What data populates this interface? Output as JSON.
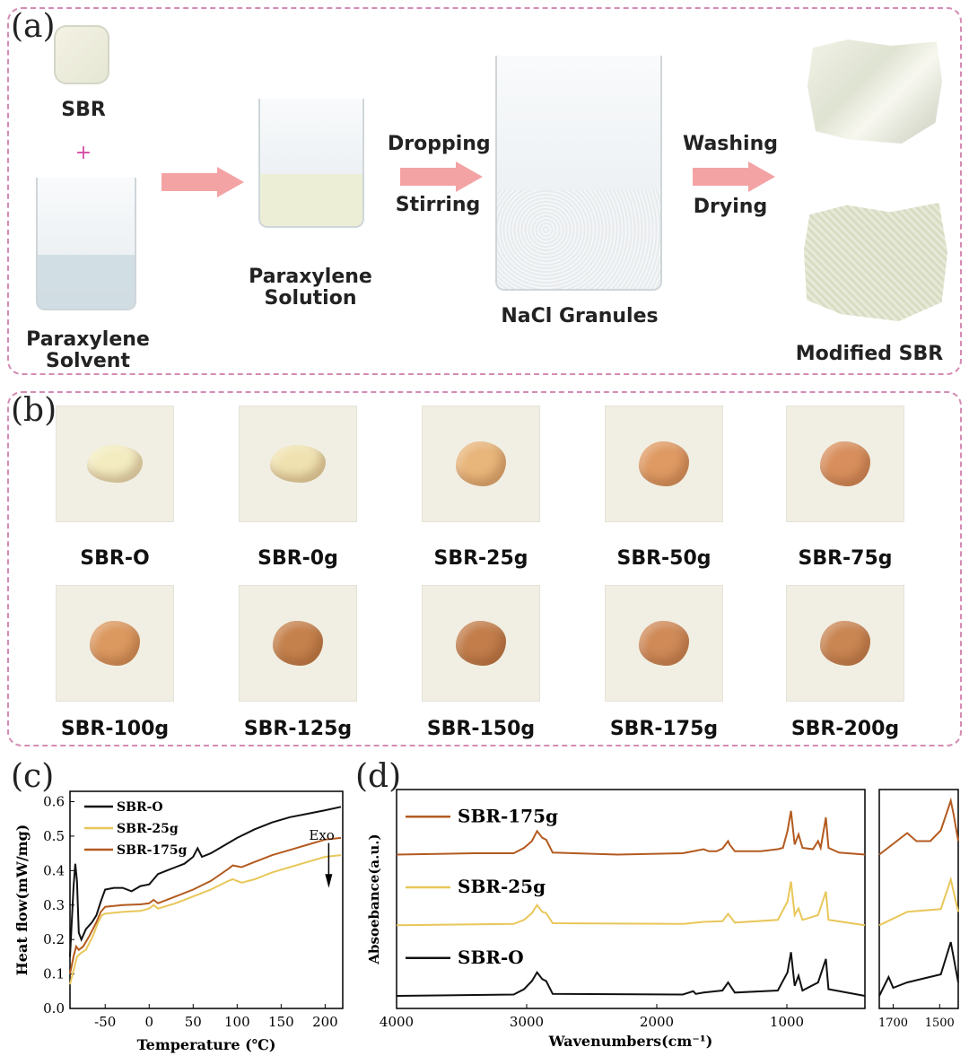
{
  "panel_a": {
    "letter": "(a)",
    "sbr": "SBR",
    "plus": "+",
    "solvent": [
      "Paraxylene",
      "Solvent"
    ],
    "solution": [
      "Paraxylene",
      "Solution"
    ],
    "step1": [
      "Dropping",
      "Stirring"
    ],
    "granules": "NaCl Granules",
    "step2": [
      "Washing",
      "Drying"
    ],
    "product": "Modified SBR",
    "arrow_color": "#f4a3a5",
    "frame_color": "#d58bb3"
  },
  "panel_b": {
    "letter": "(b)",
    "samples": [
      {
        "label": "SBR-O",
        "color": "#f3ecc0"
      },
      {
        "label": "SBR-0g",
        "color": "#f0e2b0"
      },
      {
        "label": "SBR-25g",
        "color": "#e8b57a"
      },
      {
        "label": "SBR-50g",
        "color": "#df9a63"
      },
      {
        "label": "SBR-75g",
        "color": "#d88f5d"
      },
      {
        "label": "SBR-100g",
        "color": "#db985f"
      },
      {
        "label": "SBR-125g",
        "color": "#c5814c"
      },
      {
        "label": "SBR-150g",
        "color": "#c27d4b"
      },
      {
        "label": "SBR-175g",
        "color": "#cf8a58"
      },
      {
        "label": "SBR-200g",
        "color": "#c98552"
      }
    ]
  },
  "panel_c": {
    "letter": "(c)",
    "chart_data": {
      "type": "line",
      "title": "",
      "xlabel": "Temperature (℃)",
      "ylabel": "Heat flow(mW/mg)",
      "xlim": [
        -90,
        220
      ],
      "ylim": [
        0.0,
        0.63
      ],
      "xticks": [
        -50,
        0,
        50,
        100,
        150,
        200
      ],
      "yticks": [
        0.0,
        0.1,
        0.2,
        0.3,
        0.4,
        0.5,
        0.6
      ],
      "annotation": "Exo",
      "legend_position": "top-left",
      "series": [
        {
          "name": "SBR-O",
          "color": "#111111",
          "points": [
            [
              -90,
              0.15
            ],
            [
              -86,
              0.35
            ],
            [
              -84,
              0.42
            ],
            [
              -82,
              0.37
            ],
            [
              -80,
              0.22
            ],
            [
              -77,
              0.2
            ],
            [
              -72,
              0.23
            ],
            [
              -65,
              0.25
            ],
            [
              -60,
              0.27
            ],
            [
              -55,
              0.31
            ],
            [
              -50,
              0.345
            ],
            [
              -40,
              0.35
            ],
            [
              -30,
              0.35
            ],
            [
              -20,
              0.34
            ],
            [
              -10,
              0.355
            ],
            [
              0,
              0.36
            ],
            [
              5,
              0.375
            ],
            [
              10,
              0.39
            ],
            [
              20,
              0.4
            ],
            [
              30,
              0.41
            ],
            [
              40,
              0.42
            ],
            [
              50,
              0.44
            ],
            [
              55,
              0.465
            ],
            [
              60,
              0.44
            ],
            [
              70,
              0.45
            ],
            [
              80,
              0.465
            ],
            [
              90,
              0.48
            ],
            [
              100,
              0.495
            ],
            [
              120,
              0.52
            ],
            [
              140,
              0.54
            ],
            [
              160,
              0.555
            ],
            [
              180,
              0.565
            ],
            [
              200,
              0.575
            ],
            [
              218,
              0.585
            ]
          ]
        },
        {
          "name": "SBR-25g",
          "color": "#e8c75a",
          "points": [
            [
              -90,
              0.07
            ],
            [
              -86,
              0.11
            ],
            [
              -82,
              0.15
            ],
            [
              -78,
              0.16
            ],
            [
              -72,
              0.17
            ],
            [
              -64,
              0.21
            ],
            [
              -58,
              0.25
            ],
            [
              -54,
              0.27
            ],
            [
              -50,
              0.275
            ],
            [
              -30,
              0.28
            ],
            [
              -10,
              0.283
            ],
            [
              0,
              0.29
            ],
            [
              5,
              0.3
            ],
            [
              10,
              0.29
            ],
            [
              30,
              0.305
            ],
            [
              50,
              0.325
            ],
            [
              70,
              0.345
            ],
            [
              90,
              0.37
            ],
            [
              95,
              0.375
            ],
            [
              105,
              0.365
            ],
            [
              120,
              0.375
            ],
            [
              140,
              0.395
            ],
            [
              160,
              0.41
            ],
            [
              180,
              0.425
            ],
            [
              200,
              0.44
            ],
            [
              218,
              0.445
            ]
          ]
        },
        {
          "name": "SBR-175g",
          "color": "#b35a1f",
          "points": [
            [
              -90,
              0.1
            ],
            [
              -86,
              0.15
            ],
            [
              -83,
              0.18
            ],
            [
              -80,
              0.17
            ],
            [
              -75,
              0.18
            ],
            [
              -68,
              0.21
            ],
            [
              -60,
              0.25
            ],
            [
              -55,
              0.28
            ],
            [
              -50,
              0.295
            ],
            [
              -30,
              0.3
            ],
            [
              -10,
              0.302
            ],
            [
              0,
              0.305
            ],
            [
              5,
              0.315
            ],
            [
              10,
              0.305
            ],
            [
              30,
              0.325
            ],
            [
              50,
              0.345
            ],
            [
              70,
              0.37
            ],
            [
              90,
              0.405
            ],
            [
              95,
              0.415
            ],
            [
              105,
              0.41
            ],
            [
              120,
              0.425
            ],
            [
              140,
              0.445
            ],
            [
              160,
              0.46
            ],
            [
              180,
              0.475
            ],
            [
              200,
              0.49
            ],
            [
              218,
              0.495
            ]
          ]
        }
      ]
    }
  },
  "panel_d": {
    "letter": "(d)",
    "chart_data": {
      "type": "line",
      "title": "",
      "xlabel": "Wavenumbers(cm⁻¹)",
      "ylabel": "Absoebance(a.u.)",
      "xlim": [
        4000,
        400
      ],
      "xticks": [
        4000,
        3000,
        2000,
        1000
      ],
      "inset_xlim": [
        1760,
        1420
      ],
      "inset_xticks": [
        1700,
        1500
      ],
      "y_units": "arbitrary, stacked",
      "series": [
        {
          "name": "SBR-175g",
          "color": "#b35a1f",
          "offset": 2.1,
          "points": [
            [
              4000,
              0.0
            ],
            [
              3400,
              0.02
            ],
            [
              3100,
              0.02
            ],
            [
              3020,
              0.1
            ],
            [
              2960,
              0.2
            ],
            [
              2920,
              0.35
            ],
            [
              2880,
              0.25
            ],
            [
              2850,
              0.22
            ],
            [
              2800,
              0.03
            ],
            [
              2300,
              0.0
            ],
            [
              1800,
              0.02
            ],
            [
              1640,
              0.08
            ],
            [
              1600,
              0.05
            ],
            [
              1540,
              0.05
            ],
            [
              1495,
              0.09
            ],
            [
              1452,
              0.2
            ],
            [
              1440,
              0.15
            ],
            [
              1400,
              0.05
            ],
            [
              1200,
              0.05
            ],
            [
              1070,
              0.08
            ],
            [
              1030,
              0.1
            ],
            [
              995,
              0.35
            ],
            [
              968,
              0.65
            ],
            [
              940,
              0.15
            ],
            [
              910,
              0.3
            ],
            [
              880,
              0.1
            ],
            [
              800,
              0.08
            ],
            [
              760,
              0.2
            ],
            [
              740,
              0.1
            ],
            [
              700,
              0.55
            ],
            [
              680,
              0.1
            ],
            [
              600,
              0.03
            ],
            [
              400,
              0.0
            ]
          ]
        },
        {
          "name": "SBR-25g",
          "color": "#e8c75a",
          "offset": 1.05,
          "points": [
            [
              4000,
              0.0
            ],
            [
              3100,
              0.02
            ],
            [
              3020,
              0.08
            ],
            [
              2960,
              0.18
            ],
            [
              2920,
              0.3
            ],
            [
              2880,
              0.2
            ],
            [
              2850,
              0.18
            ],
            [
              2800,
              0.03
            ],
            [
              1800,
              0.02
            ],
            [
              1640,
              0.05
            ],
            [
              1495,
              0.06
            ],
            [
              1452,
              0.17
            ],
            [
              1400,
              0.04
            ],
            [
              1070,
              0.08
            ],
            [
              995,
              0.35
            ],
            [
              968,
              0.65
            ],
            [
              940,
              0.15
            ],
            [
              910,
              0.25
            ],
            [
              880,
              0.08
            ],
            [
              760,
              0.15
            ],
            [
              700,
              0.5
            ],
            [
              680,
              0.08
            ],
            [
              400,
              0.0
            ]
          ]
        },
        {
          "name": "SBR-O",
          "color": "#111111",
          "offset": 0.0,
          "points": [
            [
              4000,
              0.0
            ],
            [
              3100,
              0.02
            ],
            [
              3020,
              0.1
            ],
            [
              2960,
              0.22
            ],
            [
              2920,
              0.35
            ],
            [
              2880,
              0.25
            ],
            [
              2850,
              0.22
            ],
            [
              2800,
              0.03
            ],
            [
              1800,
              0.02
            ],
            [
              1720,
              0.07
            ],
            [
              1700,
              0.03
            ],
            [
              1640,
              0.05
            ],
            [
              1495,
              0.08
            ],
            [
              1452,
              0.2
            ],
            [
              1400,
              0.05
            ],
            [
              1070,
              0.08
            ],
            [
              995,
              0.35
            ],
            [
              968,
              0.65
            ],
            [
              940,
              0.15
            ],
            [
              910,
              0.3
            ],
            [
              880,
              0.08
            ],
            [
              760,
              0.2
            ],
            [
              700,
              0.55
            ],
            [
              680,
              0.1
            ],
            [
              400,
              0.0
            ]
          ]
        }
      ]
    }
  }
}
